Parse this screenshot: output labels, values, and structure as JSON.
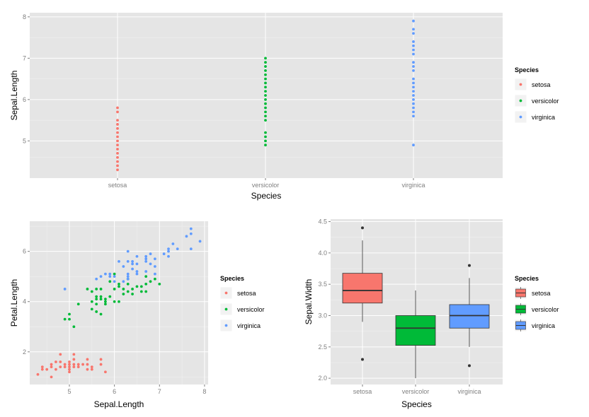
{
  "legend_title": "Species",
  "species": [
    "setosa",
    "versicolor",
    "virginica"
  ],
  "colors": {
    "setosa": "#F8766D",
    "versicolor": "#00BA38",
    "virginica": "#619CFF"
  },
  "chart_data": [
    {
      "type": "scatter",
      "title": "",
      "xlabel": "Species",
      "ylabel": "Sepal.Length",
      "categories": [
        "setosa",
        "versicolor",
        "virginica"
      ],
      "yticks": [
        5,
        6,
        7,
        8
      ],
      "ylim": [
        4.1,
        8.1
      ],
      "grid": true,
      "legend": "right",
      "series": [
        {
          "name": "setosa",
          "y": [
            4.3,
            4.4,
            4.5,
            4.6,
            4.7,
            4.8,
            4.9,
            5.0,
            5.1,
            5.2,
            5.3,
            5.4,
            5.5,
            5.7,
            5.8
          ]
        },
        {
          "name": "versicolor",
          "y": [
            4.9,
            5.0,
            5.1,
            5.2,
            5.5,
            5.6,
            5.7,
            5.8,
            5.9,
            6.0,
            6.1,
            6.2,
            6.3,
            6.4,
            6.5,
            6.6,
            6.7,
            6.8,
            6.9,
            7.0
          ]
        },
        {
          "name": "virginica",
          "y": [
            4.9,
            5.6,
            5.7,
            5.8,
            5.9,
            6.0,
            6.1,
            6.2,
            6.3,
            6.4,
            6.5,
            6.7,
            6.8,
            6.9,
            7.1,
            7.2,
            7.3,
            7.4,
            7.6,
            7.7,
            7.9
          ]
        }
      ]
    },
    {
      "type": "scatter",
      "title": "",
      "xlabel": "Sepal.Length",
      "ylabel": "Petal.Length",
      "xticks": [
        5,
        6,
        7,
        8
      ],
      "yticks": [
        2,
        4,
        6
      ],
      "xlim": [
        4.12,
        8.08
      ],
      "ylim": [
        0.7,
        7.2
      ],
      "grid": true,
      "legend": "right",
      "series": [
        {
          "name": "setosa",
          "points": [
            [
              4.3,
              1.1
            ],
            [
              4.4,
              1.3
            ],
            [
              4.4,
              1.4
            ],
            [
              4.5,
              1.3
            ],
            [
              4.6,
              1.0
            ],
            [
              4.6,
              1.4
            ],
            [
              4.6,
              1.5
            ],
            [
              4.7,
              1.3
            ],
            [
              4.7,
              1.6
            ],
            [
              4.8,
              1.4
            ],
            [
              4.8,
              1.6
            ],
            [
              4.8,
              1.9
            ],
            [
              4.9,
              1.4
            ],
            [
              4.9,
              1.5
            ],
            [
              5.0,
              1.2
            ],
            [
              5.0,
              1.3
            ],
            [
              5.0,
              1.4
            ],
            [
              5.0,
              1.5
            ],
            [
              5.0,
              1.6
            ],
            [
              5.1,
              1.4
            ],
            [
              5.1,
              1.5
            ],
            [
              5.1,
              1.7
            ],
            [
              5.1,
              1.9
            ],
            [
              5.2,
              1.4
            ],
            [
              5.2,
              1.5
            ],
            [
              5.3,
              1.5
            ],
            [
              5.4,
              1.3
            ],
            [
              5.4,
              1.5
            ],
            [
              5.4,
              1.7
            ],
            [
              5.5,
              1.3
            ],
            [
              5.5,
              1.4
            ],
            [
              5.7,
              1.5
            ],
            [
              5.7,
              1.7
            ],
            [
              5.8,
              1.2
            ]
          ]
        },
        {
          "name": "versicolor",
          "points": [
            [
              4.9,
              3.3
            ],
            [
              5.0,
              3.3
            ],
            [
              5.0,
              3.5
            ],
            [
              5.1,
              3.0
            ],
            [
              5.2,
              3.9
            ],
            [
              5.4,
              4.5
            ],
            [
              5.5,
              3.7
            ],
            [
              5.5,
              4.0
            ],
            [
              5.5,
              4.4
            ],
            [
              5.6,
              3.6
            ],
            [
              5.6,
              3.9
            ],
            [
              5.6,
              4.1
            ],
            [
              5.6,
              4.2
            ],
            [
              5.6,
              4.5
            ],
            [
              5.7,
              3.5
            ],
            [
              5.7,
              4.1
            ],
            [
              5.7,
              4.2
            ],
            [
              5.7,
              4.5
            ],
            [
              5.8,
              3.9
            ],
            [
              5.8,
              4.0
            ],
            [
              5.8,
              4.1
            ],
            [
              5.9,
              4.2
            ],
            [
              5.9,
              4.8
            ],
            [
              6.0,
              4.0
            ],
            [
              6.0,
              4.5
            ],
            [
              6.0,
              5.1
            ],
            [
              6.1,
              4.0
            ],
            [
              6.1,
              4.6
            ],
            [
              6.1,
              4.7
            ],
            [
              6.2,
              4.3
            ],
            [
              6.2,
              4.5
            ],
            [
              6.3,
              4.4
            ],
            [
              6.3,
              4.7
            ],
            [
              6.3,
              4.9
            ],
            [
              6.4,
              4.3
            ],
            [
              6.4,
              4.5
            ],
            [
              6.5,
              4.6
            ],
            [
              6.6,
              4.4
            ],
            [
              6.6,
              4.6
            ],
            [
              6.7,
              4.4
            ],
            [
              6.7,
              4.7
            ],
            [
              6.7,
              5.0
            ],
            [
              6.8,
              4.8
            ],
            [
              6.9,
              4.9
            ],
            [
              7.0,
              4.7
            ]
          ]
        },
        {
          "name": "virginica",
          "points": [
            [
              4.9,
              4.5
            ],
            [
              5.6,
              4.9
            ],
            [
              5.7,
              5.0
            ],
            [
              5.8,
              5.1
            ],
            [
              5.9,
              5.0
            ],
            [
              5.9,
              5.1
            ],
            [
              6.0,
              4.8
            ],
            [
              6.0,
              5.0
            ],
            [
              6.1,
              5.6
            ],
            [
              6.2,
              4.8
            ],
            [
              6.2,
              5.4
            ],
            [
              6.3,
              4.9
            ],
            [
              6.3,
              5.0
            ],
            [
              6.3,
              5.1
            ],
            [
              6.3,
              5.6
            ],
            [
              6.3,
              6.0
            ],
            [
              6.4,
              5.3
            ],
            [
              6.4,
              5.5
            ],
            [
              6.4,
              5.6
            ],
            [
              6.5,
              5.1
            ],
            [
              6.5,
              5.2
            ],
            [
              6.5,
              5.5
            ],
            [
              6.5,
              5.8
            ],
            [
              6.7,
              5.2
            ],
            [
              6.7,
              5.6
            ],
            [
              6.7,
              5.7
            ],
            [
              6.7,
              5.8
            ],
            [
              6.8,
              5.5
            ],
            [
              6.8,
              5.9
            ],
            [
              6.9,
              5.1
            ],
            [
              6.9,
              5.4
            ],
            [
              6.9,
              5.7
            ],
            [
              7.1,
              5.9
            ],
            [
              7.2,
              5.8
            ],
            [
              7.2,
              6.0
            ],
            [
              7.2,
              6.1
            ],
            [
              7.3,
              6.3
            ],
            [
              7.4,
              6.1
            ],
            [
              7.6,
              6.6
            ],
            [
              7.7,
              6.1
            ],
            [
              7.7,
              6.7
            ],
            [
              7.7,
              6.9
            ],
            [
              7.9,
              6.4
            ]
          ]
        }
      ]
    },
    {
      "type": "box",
      "title": "",
      "xlabel": "Species",
      "ylabel": "Sepal.Width",
      "categories": [
        "setosa",
        "versicolor",
        "virginica"
      ],
      "yticks": [
        2.0,
        2.5,
        3.0,
        3.5,
        4.0,
        4.5
      ],
      "ytick_labels": [
        "2.0",
        "2.5",
        "3.0",
        "3.5",
        "4.0",
        "4.5"
      ],
      "ylim": [
        1.9,
        4.54
      ],
      "grid": true,
      "legend": "right",
      "boxes": [
        {
          "name": "setosa",
          "min": 2.9,
          "q1": 3.2,
          "median": 3.4,
          "q3": 3.675,
          "max": 4.2,
          "outliers": [
            2.3,
            4.4
          ]
        },
        {
          "name": "versicolor",
          "min": 2.0,
          "q1": 2.525,
          "median": 2.8,
          "q3": 3.0,
          "max": 3.4,
          "outliers": []
        },
        {
          "name": "virginica",
          "min": 2.5,
          "q1": 2.8,
          "median": 3.0,
          "q3": 3.175,
          "max": 3.6,
          "outliers": [
            2.2,
            3.8
          ]
        }
      ]
    }
  ]
}
